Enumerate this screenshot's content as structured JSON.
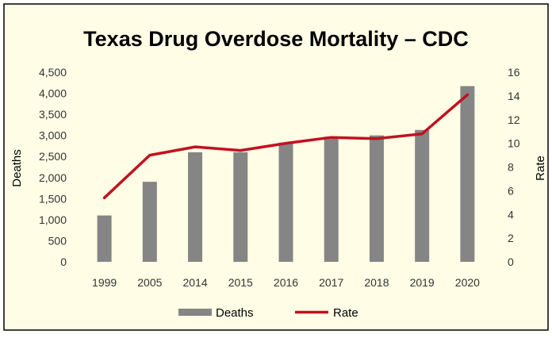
{
  "colors": {
    "background": "#FFFDE6",
    "border": "#000000",
    "bar": "#858585",
    "line": "#C1121F",
    "text": "#000000",
    "tick": "#333333"
  },
  "chart_data": {
    "type": "bar",
    "title": "Texas Drug Overdose Mortality – CDC",
    "xlabel": "",
    "ylabel": "Deaths",
    "ylabel_right": "Rate",
    "categories": [
      "1999",
      "2005",
      "2014",
      "2015",
      "2016",
      "2017",
      "2018",
      "2019",
      "2020"
    ],
    "ylim": [
      0,
      4500
    ],
    "ylim_right": [
      0,
      16
    ],
    "yticks": [
      "0",
      "500",
      "1,000",
      "1,500",
      "2,000",
      "2,500",
      "3,000",
      "3,500",
      "4,000",
      "4,500"
    ],
    "yticks_right": [
      "0",
      "2",
      "4",
      "6",
      "8",
      "10",
      "12",
      "14",
      "16"
    ],
    "grid": false,
    "legend_position": "bottom",
    "series": [
      {
        "name": "Deaths",
        "type": "bar",
        "axis": "left",
        "values": [
          1100,
          1900,
          2600,
          2600,
          2830,
          2970,
          3000,
          3130,
          4170
        ]
      },
      {
        "name": "Rate",
        "type": "line",
        "axis": "right",
        "values": [
          5.4,
          9.0,
          9.7,
          9.4,
          10.0,
          10.5,
          10.4,
          10.8,
          14.1
        ]
      }
    ]
  }
}
